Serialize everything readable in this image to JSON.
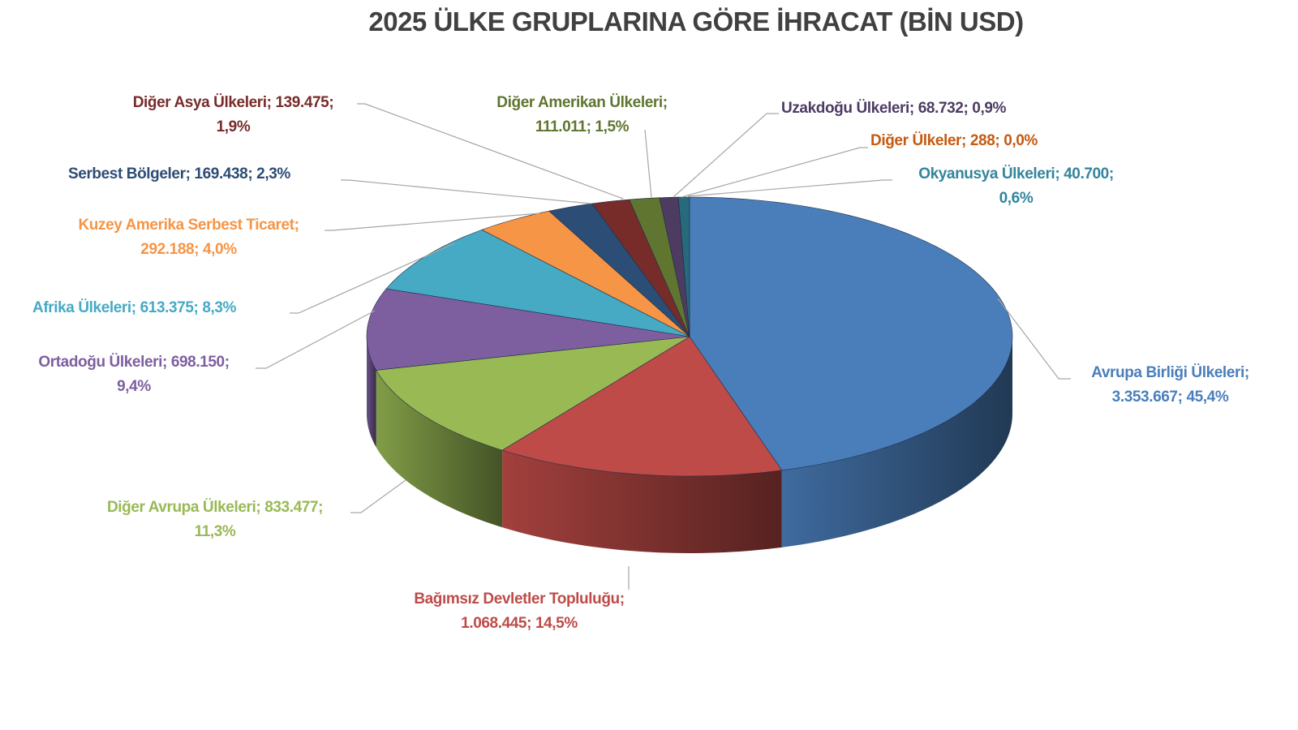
{
  "chart_data": {
    "type": "pie",
    "style": "3d",
    "title": "2025 ÜLKE GRUPLARINA GÖRE İHRACAT (BİN USD)",
    "start_angle": "top, clockwise",
    "legend": "none (data labels with leader lines)",
    "slices": [
      {
        "name": "Avrupa Birliği Ülkeleri",
        "value": 3353667,
        "value_label": "3.353.667",
        "percent": "45,4%",
        "color": "#4A7EBB",
        "label_color": "#4A7EBB"
      },
      {
        "name": "Bağımsız Devletler Topluluğu",
        "value": 1068445,
        "value_label": "1.068.445",
        "percent": "14,5%",
        "color": "#BE4B48",
        "label_color": "#BE4B48"
      },
      {
        "name": "Diğer Avrupa Ülkeleri",
        "value": 833477,
        "value_label": "833.477",
        "percent": "11,3%",
        "color": "#98B954",
        "label_color": "#98B954"
      },
      {
        "name": "Ortadoğu Ülkeleri",
        "value": 698150,
        "value_label": "698.150",
        "percent": "9,4%",
        "color": "#7D5FA0",
        "label_color": "#7D5FA0"
      },
      {
        "name": "Afrika Ülkeleri",
        "value": 613375,
        "value_label": "613.375",
        "percent": "8,3%",
        "color": "#46AAC5",
        "label_color": "#46AAC5"
      },
      {
        "name": "Kuzey Amerika Serbest Ticaret",
        "value": 292188,
        "value_label": "292.188",
        "percent": "4,0%",
        "color": "#F69545",
        "label_color": "#F69545"
      },
      {
        "name": "Serbest Bölgeler",
        "value": 169438,
        "value_label": "169.438",
        "percent": "2,3%",
        "color": "#2C4D75",
        "label_color": "#2C4D75"
      },
      {
        "name": "Diğer Asya Ülkeleri",
        "value": 139475,
        "value_label": "139.475",
        "percent": "1,9%",
        "color": "#772C2A",
        "label_color": "#772C2A"
      },
      {
        "name": "Diğer Amerikan Ülkeleri",
        "value": 111011,
        "value_label": "111.011",
        "percent": "1,5%",
        "color": "#5F7530",
        "label_color": "#5F7530"
      },
      {
        "name": "Uzakdoğu Ülkeleri",
        "value": 68732,
        "value_label": "68.732",
        "percent": "0,9%",
        "color": "#4D3B62",
        "label_color": "#4D3B62"
      },
      {
        "name": "Diğer Ülkeler",
        "value": 288,
        "value_label": "288",
        "percent": "0,0%",
        "color": "#B65708",
        "label_color": "#C55A11"
      },
      {
        "name": "Okyanusya Ülkeleri",
        "value": 40700,
        "value_label": "40.700",
        "percent": "0,6%",
        "color": "#276A7C",
        "label_color": "#31859C"
      }
    ]
  }
}
